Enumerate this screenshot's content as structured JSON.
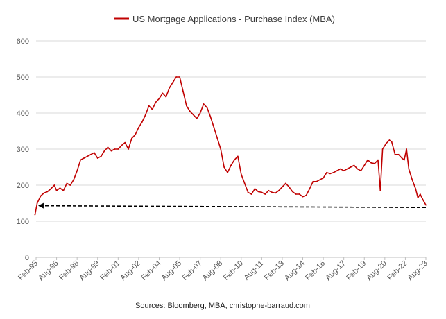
{
  "chart_data": {
    "type": "line",
    "title": "",
    "series": [
      {
        "name": "US Mortgage Applications - Purchase Index (MBA)",
        "color": "#c00000",
        "points": [
          [
            "1995-01",
            118
          ],
          [
            "1995-03",
            150
          ],
          [
            "1995-06",
            170
          ],
          [
            "1995-09",
            178
          ],
          [
            "1995-12",
            182
          ],
          [
            "1996-03",
            190
          ],
          [
            "1996-06",
            200
          ],
          [
            "1996-08",
            185
          ],
          [
            "1996-11",
            192
          ],
          [
            "1997-02",
            185
          ],
          [
            "1997-05",
            205
          ],
          [
            "1997-08",
            200
          ],
          [
            "1997-11",
            215
          ],
          [
            "1998-02",
            240
          ],
          [
            "1998-05",
            270
          ],
          [
            "1998-08",
            275
          ],
          [
            "1998-11",
            280
          ],
          [
            "1999-02",
            285
          ],
          [
            "1999-05",
            290
          ],
          [
            "1999-08",
            275
          ],
          [
            "1999-11",
            280
          ],
          [
            "2000-02",
            295
          ],
          [
            "2000-05",
            305
          ],
          [
            "2000-08",
            295
          ],
          [
            "2000-11",
            300
          ],
          [
            "2001-02",
            300
          ],
          [
            "2001-05",
            310
          ],
          [
            "2001-08",
            318
          ],
          [
            "2001-11",
            300
          ],
          [
            "2002-02",
            330
          ],
          [
            "2002-05",
            340
          ],
          [
            "2002-08",
            360
          ],
          [
            "2002-11",
            375
          ],
          [
            "2003-02",
            395
          ],
          [
            "2003-05",
            420
          ],
          [
            "2003-08",
            410
          ],
          [
            "2003-11",
            430
          ],
          [
            "2004-02",
            440
          ],
          [
            "2004-05",
            455
          ],
          [
            "2004-08",
            445
          ],
          [
            "2004-11",
            470
          ],
          [
            "2005-02",
            485
          ],
          [
            "2005-05",
            500
          ],
          [
            "2005-08",
            500
          ],
          [
            "2005-11",
            460
          ],
          [
            "2006-02",
            420
          ],
          [
            "2006-05",
            405
          ],
          [
            "2006-08",
            395
          ],
          [
            "2006-11",
            385
          ],
          [
            "2007-02",
            400
          ],
          [
            "2007-05",
            425
          ],
          [
            "2007-08",
            415
          ],
          [
            "2007-11",
            390
          ],
          [
            "2008-02",
            360
          ],
          [
            "2008-05",
            330
          ],
          [
            "2008-08",
            300
          ],
          [
            "2008-11",
            250
          ],
          [
            "2009-02",
            235
          ],
          [
            "2009-05",
            255
          ],
          [
            "2009-08",
            270
          ],
          [
            "2009-11",
            280
          ],
          [
            "2010-02",
            230
          ],
          [
            "2010-05",
            205
          ],
          [
            "2010-08",
            180
          ],
          [
            "2010-11",
            175
          ],
          [
            "2011-02",
            190
          ],
          [
            "2011-05",
            182
          ],
          [
            "2011-08",
            180
          ],
          [
            "2011-11",
            175
          ],
          [
            "2012-02",
            185
          ],
          [
            "2012-05",
            180
          ],
          [
            "2012-08",
            178
          ],
          [
            "2012-11",
            185
          ],
          [
            "2013-02",
            195
          ],
          [
            "2013-05",
            205
          ],
          [
            "2013-08",
            195
          ],
          [
            "2013-11",
            182
          ],
          [
            "2014-02",
            175
          ],
          [
            "2014-05",
            175
          ],
          [
            "2014-08",
            168
          ],
          [
            "2014-11",
            172
          ],
          [
            "2015-02",
            190
          ],
          [
            "2015-05",
            210
          ],
          [
            "2015-08",
            210
          ],
          [
            "2015-11",
            215
          ],
          [
            "2016-02",
            220
          ],
          [
            "2016-05",
            235
          ],
          [
            "2016-08",
            232
          ],
          [
            "2016-11",
            235
          ],
          [
            "2017-02",
            240
          ],
          [
            "2017-05",
            245
          ],
          [
            "2017-08",
            240
          ],
          [
            "2017-11",
            245
          ],
          [
            "2018-02",
            250
          ],
          [
            "2018-05",
            255
          ],
          [
            "2018-08",
            245
          ],
          [
            "2018-11",
            240
          ],
          [
            "2019-02",
            255
          ],
          [
            "2019-05",
            270
          ],
          [
            "2019-08",
            262
          ],
          [
            "2019-11",
            260
          ],
          [
            "2020-02",
            270
          ],
          [
            "2020-04",
            185
          ],
          [
            "2020-06",
            300
          ],
          [
            "2020-09",
            315
          ],
          [
            "2020-12",
            325
          ],
          [
            "2021-02",
            320
          ],
          [
            "2021-05",
            285
          ],
          [
            "2021-08",
            285
          ],
          [
            "2021-11",
            275
          ],
          [
            "2022-01",
            270
          ],
          [
            "2022-03",
            300
          ],
          [
            "2022-05",
            245
          ],
          [
            "2022-08",
            215
          ],
          [
            "2022-11",
            190
          ],
          [
            "2023-01",
            165
          ],
          [
            "2023-03",
            175
          ],
          [
            "2023-05",
            162
          ],
          [
            "2023-08",
            145
          ]
        ]
      }
    ],
    "annotations": [
      {
        "type": "dashed-arrow",
        "from": [
          "2023-08",
          138
        ],
        "to": [
          "1995-05",
          143
        ]
      }
    ],
    "yticks": [
      0,
      100,
      200,
      300,
      400,
      500,
      600
    ],
    "ylim": [
      0,
      600
    ],
    "xlim": [
      "1995-02",
      "2023-08"
    ],
    "xticks": [
      "Feb-95",
      "Aug-96",
      "Feb-98",
      "Aug-99",
      "Feb-01",
      "Aug-02",
      "Feb-04",
      "Aug-05",
      "Feb-07",
      "Aug-08",
      "Feb-10",
      "Aug-11",
      "Feb-13",
      "Aug-14",
      "Feb-16",
      "Aug-17",
      "Feb-19",
      "Aug-20",
      "Feb-22",
      "Aug-23"
    ],
    "grid": true,
    "legend": "top-center"
  },
  "legend": {
    "label": "US Mortgage Applications - Purchase Index (MBA)"
  },
  "source": "Sources: Bloomberg, MBA, christophe-barraud.com"
}
